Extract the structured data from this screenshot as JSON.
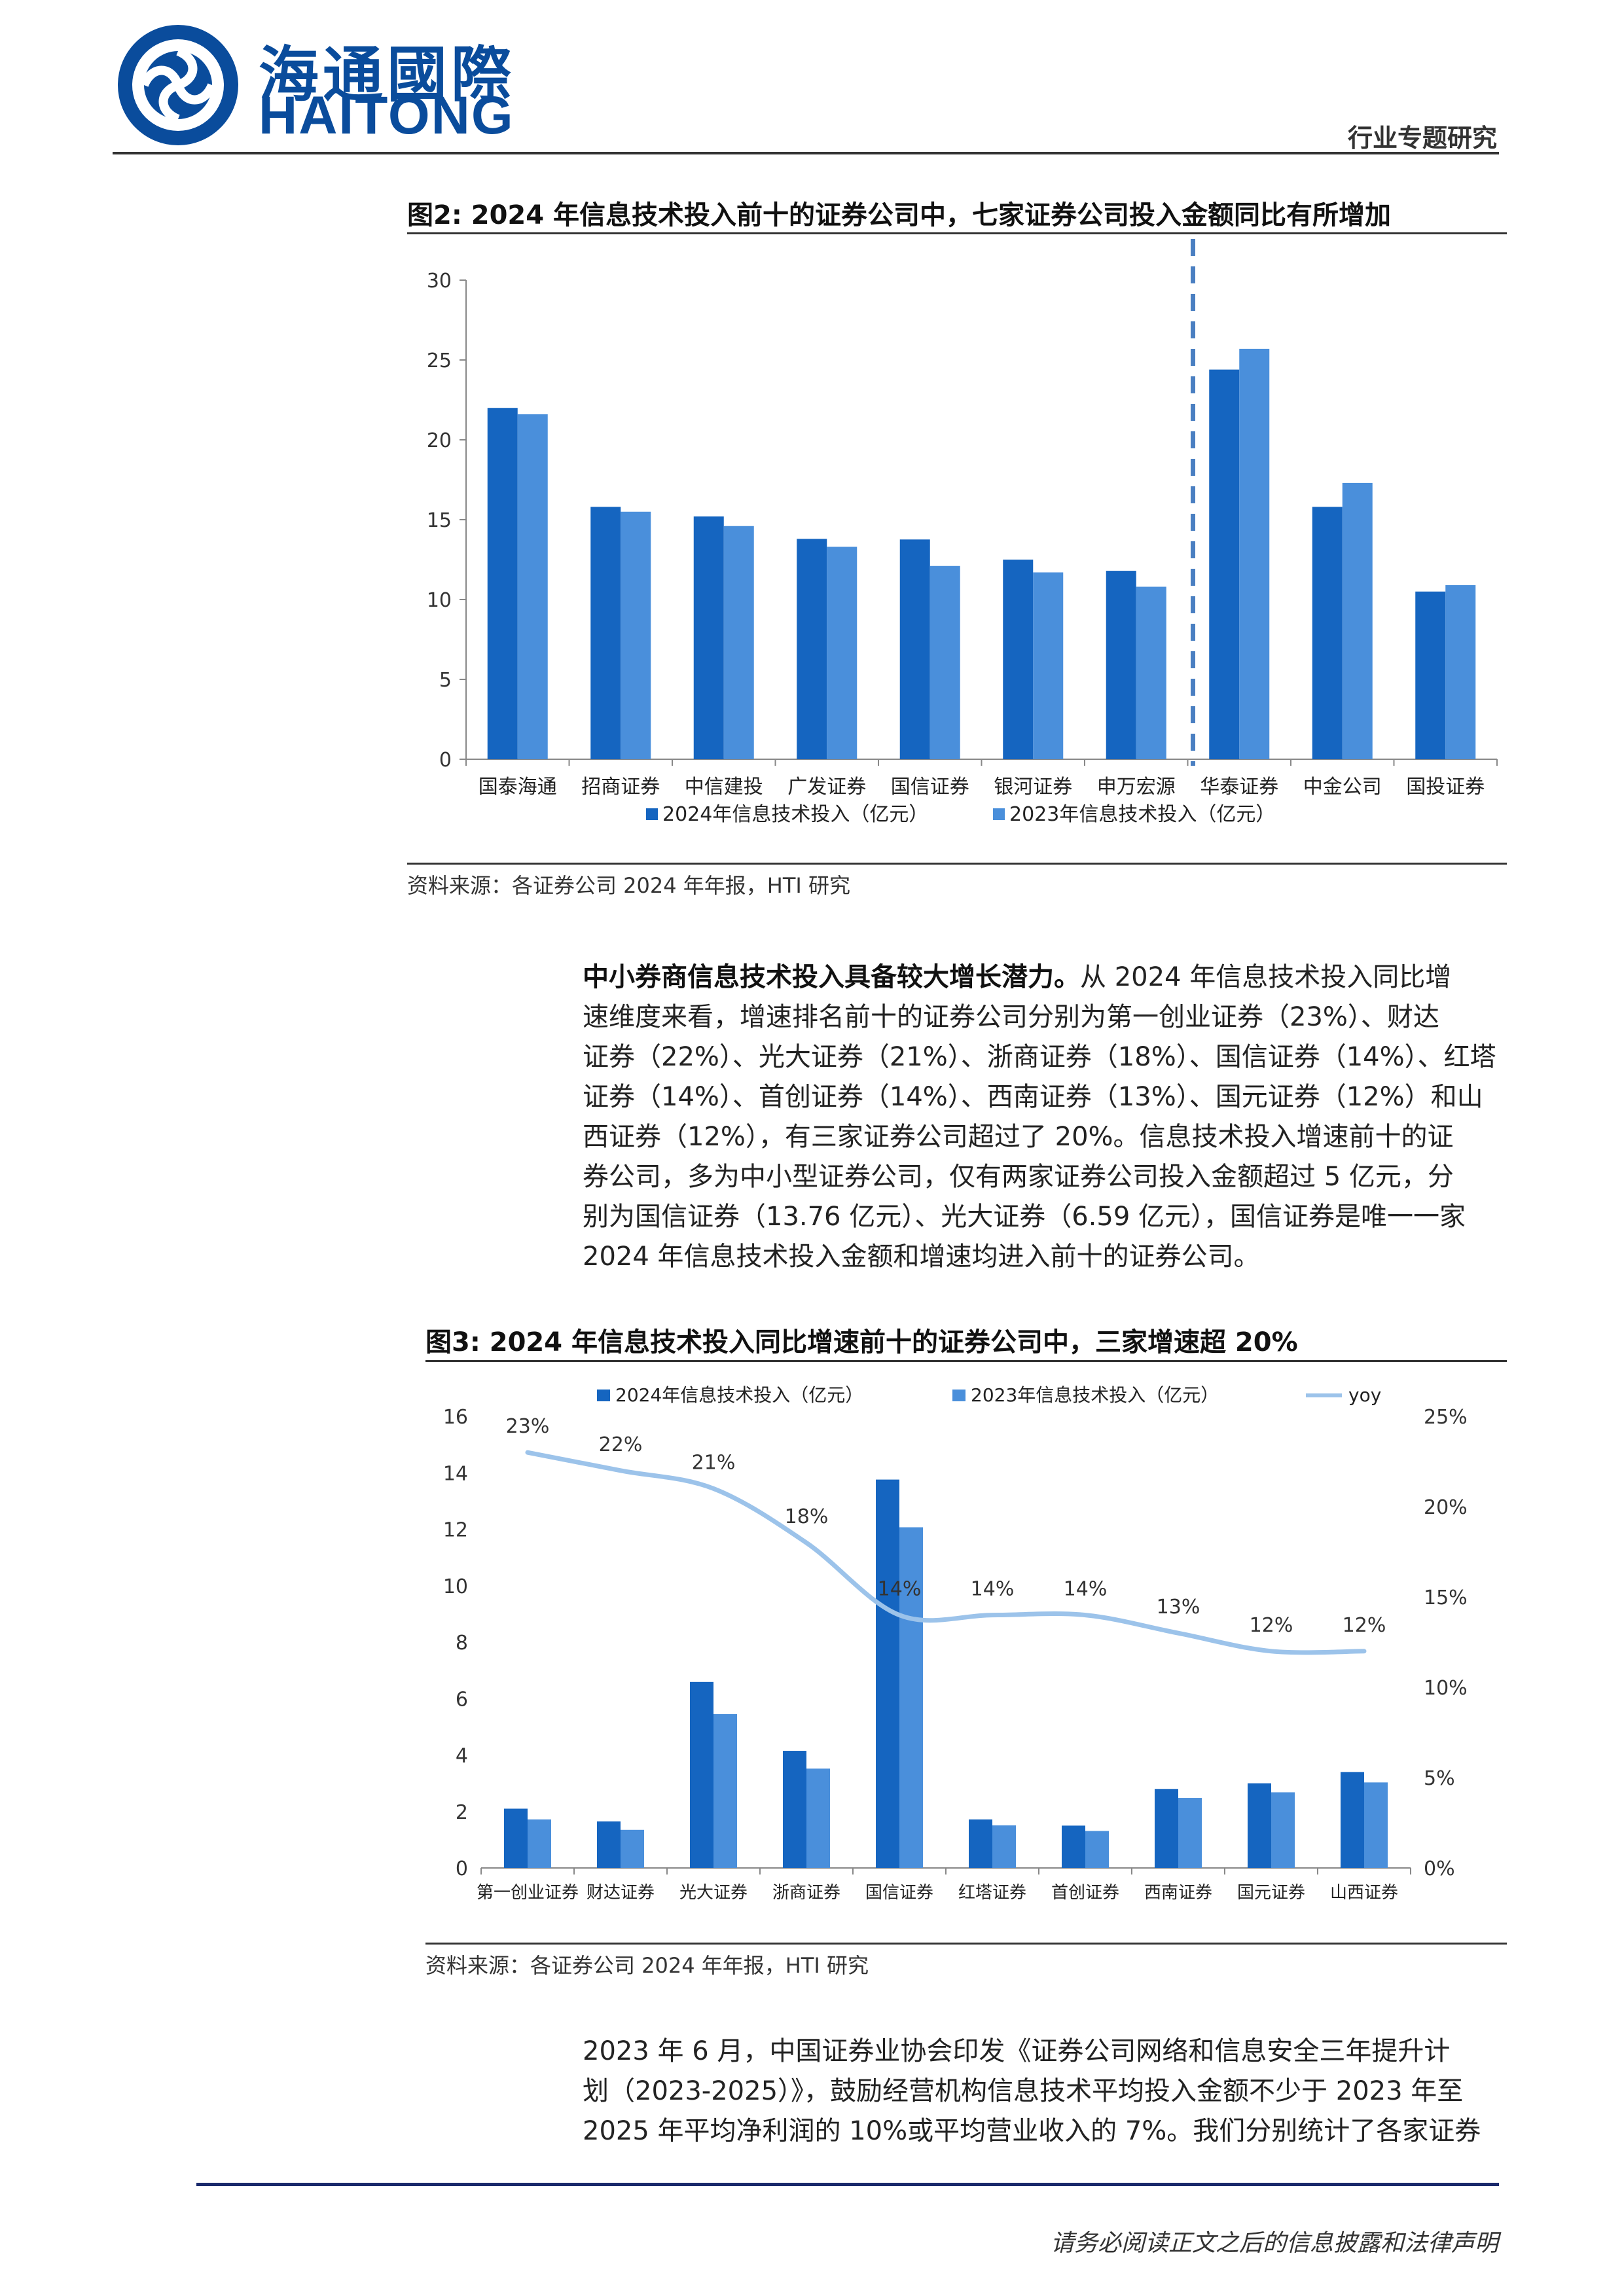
{
  "header": {
    "logo_cn": "海通國際",
    "logo_en": "HAITONG",
    "section": "行业专题研究"
  },
  "figure2": {
    "title": "图2:  2024 年信息技术投入前十的证券公司中，七家证券公司投入金额同比有所增加",
    "source": "资料来源：各证券公司 2024 年年报，HTI 研究"
  },
  "figure3": {
    "title": "图3:  2024 年信息技术投入同比增速前十的证券公司中，三家增速超 20%",
    "source": "资料来源：各证券公司 2024 年年报，HTI 研究"
  },
  "paragraph1": {
    "lead": "中小券商信息技术投入具备较大增长潜力。",
    "lines": [
      "从 2024 年信息技术投入同比增",
      "速维度来看，增速排名前十的证券公司分别为第一创业证券（23%）、财达",
      "证券（22%）、光大证券（21%）、浙商证券（18%）、国信证券（14%）、红塔",
      "证券（14%）、首创证券（14%）、西南证券（13%）、国元证券（12%）和山",
      "西证券（12%），有三家证券公司超过了 20%。信息技术投入增速前十的证",
      "券公司，多为中小型证券公司，仅有两家证券公司投入金额超过 5 亿元，分",
      "别为国信证券（13.76 亿元）、光大证券（6.59 亿元），国信证券是唯一一家",
      "2024 年信息技术投入金额和增速均进入前十的证券公司。"
    ]
  },
  "paragraph2": {
    "lines": [
      "2023 年 6 月，中国证券业协会印发《证券公司网络和信息安全三年提升计",
      "划（2023-2025）》，鼓励经营机构信息技术平均投入金额不少于  2023  年至",
      "2025 年平均净利润的 10%或平均营业收入的 7%。我们分别统计了各家证券"
    ]
  },
  "footer": {
    "text": "请务必阅读正文之后的信息披露和法律声明"
  },
  "colors": {
    "series2024": "#1565c0",
    "series2023": "#4a8fdb",
    "yoy": "#9cc3ea",
    "dash": "#4a7fc1"
  },
  "chart_data": [
    {
      "type": "bar",
      "categories": [
        "国泰海通",
        "招商证券",
        "中信建投",
        "广发证券",
        "国信证券",
        "银河证券",
        "申万宏源",
        "华泰证券",
        "中金公司",
        "国投证券"
      ],
      "series": [
        {
          "name": "2024年信息技术投入（亿元）",
          "values": [
            22.0,
            15.8,
            15.2,
            13.8,
            13.76,
            12.5,
            11.8,
            24.4,
            15.8,
            10.5
          ]
        },
        {
          "name": "2023年信息技术投入（亿元）",
          "values": [
            21.6,
            15.5,
            14.6,
            13.3,
            12.1,
            11.7,
            10.8,
            25.7,
            17.3,
            10.9
          ]
        }
      ],
      "ylim": [
        0,
        30
      ],
      "yticks": [
        0,
        5,
        10,
        15,
        20,
        25,
        30
      ],
      "divider_after_index": 6,
      "legend_position": "bottom",
      "grid": false
    },
    {
      "type": "bar",
      "categories": [
        "第一创业证券",
        "财达证券",
        "光大证券",
        "浙商证券",
        "国信证券",
        "红塔证券",
        "首创证券",
        "西南证券",
        "国元证券",
        "山西证券"
      ],
      "series": [
        {
          "name": "2024年信息技术投入（亿元）",
          "values": [
            2.1,
            1.65,
            6.59,
            4.15,
            13.76,
            1.72,
            1.5,
            2.8,
            3.0,
            3.4
          ]
        },
        {
          "name": "2023年信息技术投入（亿元）",
          "values": [
            1.72,
            1.35,
            5.45,
            3.52,
            12.07,
            1.51,
            1.31,
            2.48,
            2.68,
            3.03
          ]
        },
        {
          "name": "yoy",
          "type": "line",
          "axis": "right",
          "values": [
            23,
            22,
            21,
            18,
            14,
            14,
            14,
            13,
            12,
            12
          ]
        }
      ],
      "yoy_labels": [
        "23%",
        "22%",
        "21%",
        "18%",
        "14%",
        "14%",
        "14%",
        "13%",
        "12%",
        "12%"
      ],
      "ylim": [
        0,
        16
      ],
      "yticks": [
        0,
        2,
        4,
        6,
        8,
        10,
        12,
        14,
        16
      ],
      "y2lim": [
        0,
        25
      ],
      "y2ticks": [
        "0%",
        "5%",
        "10%",
        "15%",
        "20%",
        "25%"
      ],
      "legend_position": "top",
      "grid": false
    }
  ]
}
